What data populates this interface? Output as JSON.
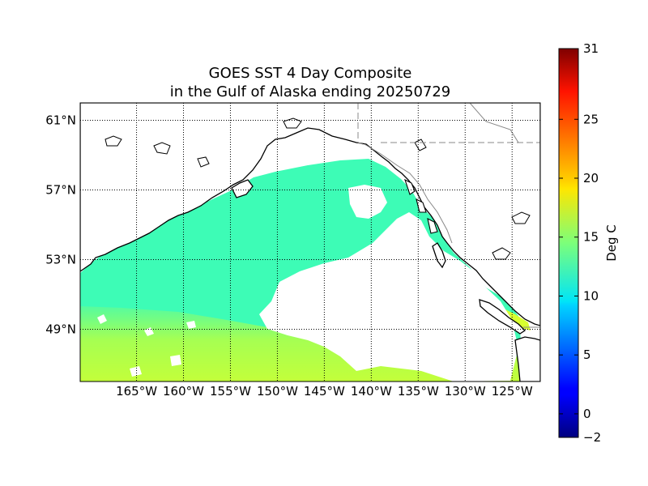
{
  "title": {
    "line1": "GOES SST 4 Day Composite",
    "line2": "in the Gulf of Alaska ending 20250729"
  },
  "map": {
    "lon_labels": [
      "165°W",
      "160°W",
      "155°W",
      "150°W",
      "145°W",
      "140°W",
      "135°W",
      "130°W",
      "125°W"
    ],
    "lon_values": [
      -165,
      -160,
      -155,
      -150,
      -145,
      -140,
      -135,
      -130,
      -125
    ],
    "lat_labels": [
      "61°N",
      "57°N",
      "53°N",
      "49°N"
    ],
    "lat_values": [
      61,
      57,
      53,
      49
    ],
    "lon_range": [
      -171,
      -122
    ],
    "lat_range": [
      46,
      62
    ],
    "land_color": "#ffffff",
    "missing_data_color": "#ffffff",
    "coastline_color": "#000000",
    "water_sst_color_mid": "#3dfcb6",
    "water_sst_color_warm": "#b9ff41"
  },
  "colorbar": {
    "label": "Deg C",
    "tick_labels": [
      "31",
      "25",
      "20",
      "15",
      "10",
      "5",
      "0",
      "−2"
    ],
    "tick_values": [
      31,
      25,
      20,
      15,
      10,
      5,
      0,
      -2
    ],
    "range": [
      -2,
      31
    ],
    "colormap": "jet"
  }
}
